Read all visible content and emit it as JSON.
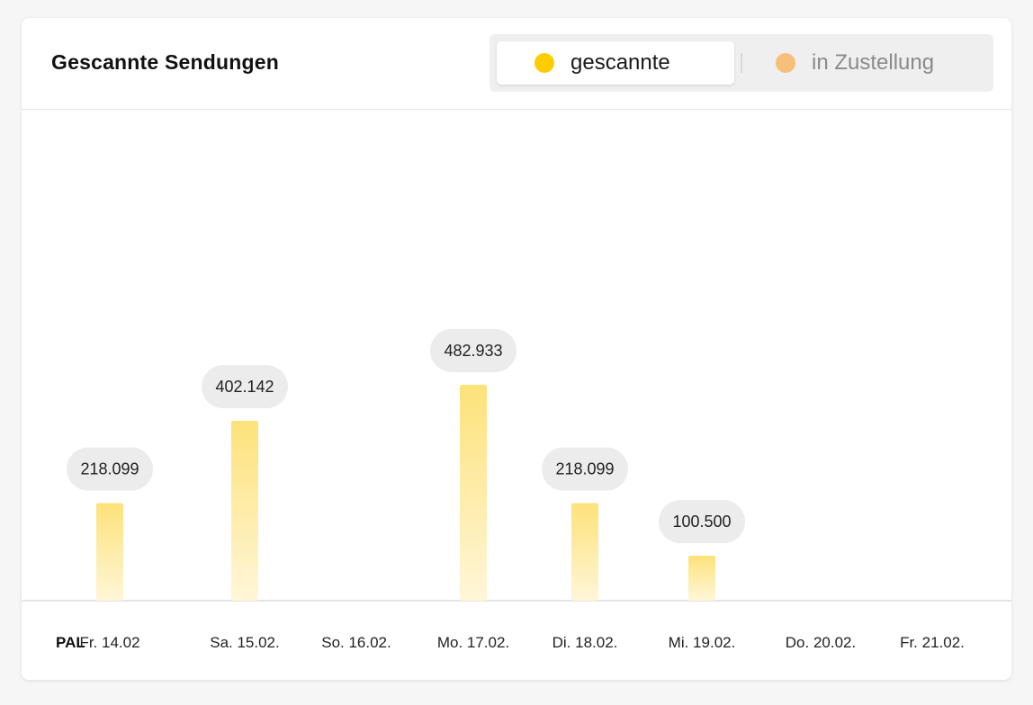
{
  "header": {
    "title": "Gescannte Sendungen"
  },
  "toggle": {
    "active_label": "gescannte",
    "inactive_label": "in Zustellung"
  },
  "colors": {
    "scanned": "#ffcc00",
    "in_delivery": "#f7c07a",
    "bar_top": "#fde27a",
    "bar_bottom": "#fff6d8",
    "label_bg": "#ececec"
  },
  "x_prefix": "PAL",
  "chart_data": {
    "type": "bar",
    "title": "Gescannte Sendungen",
    "categories": [
      "Fr. 14.02",
      "Sa. 15.02.",
      "So. 16.02.",
      "Mo. 17.02.",
      "Di. 18.02.",
      "Mi. 19.02.",
      "Do. 20.02.",
      "Fr. 21.02."
    ],
    "series": [
      {
        "name": "gescannte",
        "values": [
          218099,
          402142,
          null,
          482933,
          218099,
          100500,
          null,
          null
        ],
        "labels": [
          "218.099",
          "402.142",
          "",
          "482.933",
          "218.099",
          "100.500",
          "",
          ""
        ]
      }
    ],
    "ylim": [
      0,
      1100000
    ],
    "grid": false,
    "legend": "top-right"
  }
}
